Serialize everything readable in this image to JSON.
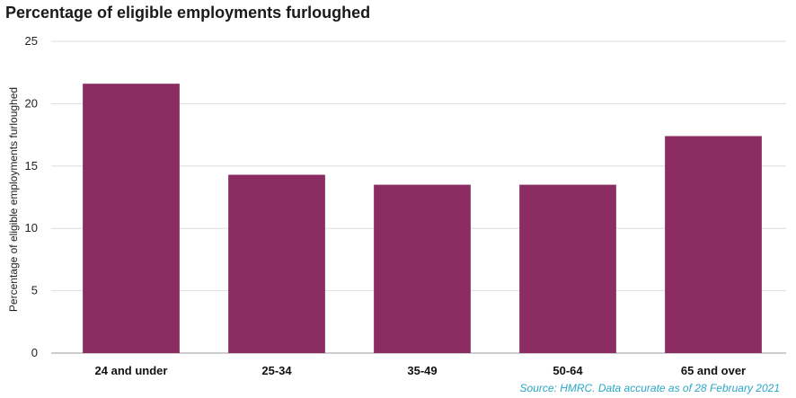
{
  "chart_data": {
    "type": "bar",
    "title": "Percentage of eligible employments furloughed",
    "ylabel": "Percentage of eligible employments furloughed",
    "xlabel": "",
    "categories": [
      "24 and under",
      "25-34",
      "35-49",
      "50-64",
      "65 and over"
    ],
    "values": [
      21.6,
      14.3,
      13.5,
      13.5,
      17.4
    ],
    "ylim": [
      0,
      25
    ],
    "yticks": [
      "0",
      "5",
      "10",
      "15",
      "20",
      "25"
    ],
    "grid": true,
    "bar_color": "#8b2c63",
    "source": "Source: HMRC. Data accurate as of 28 February 2021"
  }
}
